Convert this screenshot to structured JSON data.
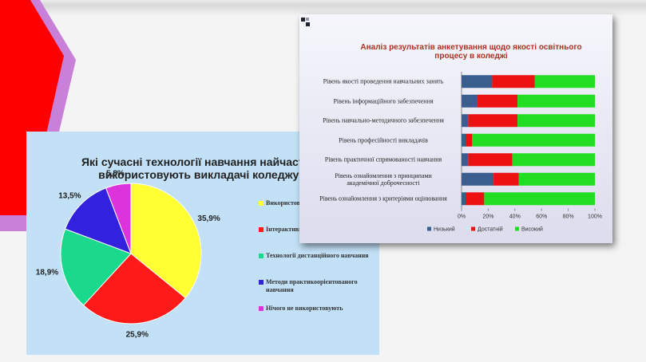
{
  "chart_data": [
    {
      "type": "pie",
      "title": "Які сучасні технології навчання найчастіше використовують викладачі коледжу?",
      "categories": [
        "Використовують електронні практичні",
        "Інтерактивні навчання",
        "Технології дистанційного навчання",
        "Методи практикоорієнтованого навчання",
        "Нічого не використовують"
      ],
      "values": [
        35.9,
        25.9,
        18.9,
        13.5,
        5.8
      ],
      "value_labels": [
        "35,9%",
        "25,9%",
        "18,9%",
        "13,5%",
        "5,8%"
      ],
      "colors": [
        "#ffff33",
        "#ff1a1a",
        "#1ad98c",
        "#3322dd",
        "#dd33dd"
      ]
    },
    {
      "type": "stacked-barh",
      "title": "Аналіз результатів анкетування щодо якості освітнього процесу в коледжі",
      "categories": [
        "Рівень якості проведення навчальних занять",
        "Рівень інформаційного забезпечення",
        "Рівень навчально-методичного забезпечення",
        "Рівень професійності викладачів",
        "Рівень практичної спрямованості навчання",
        "Рівень ознайомлення з принципами академічної доброчесності",
        "Рівень ознайомлення з критеріями оцінювання"
      ],
      "series": [
        {
          "name": "Низький",
          "color": "#3a5f8f",
          "values": [
            23,
            12,
            5,
            3,
            5,
            24,
            3
          ]
        },
        {
          "name": "Достатній",
          "color": "#ee1111",
          "values": [
            32,
            30,
            37,
            5,
            33,
            19,
            14
          ]
        },
        {
          "name": "Високий",
          "color": "#22dd22",
          "values": [
            45,
            58,
            58,
            92,
            62,
            57,
            83
          ]
        }
      ],
      "xlim": [
        0,
        100
      ],
      "xticks": [
        {
          "value": 0,
          "label": "0%"
        },
        {
          "value": 20,
          "label": "20%"
        },
        {
          "value": 40,
          "label": "40%"
        },
        {
          "value": 60,
          "label": "60%"
        },
        {
          "value": 80,
          "label": "80%"
        },
        {
          "value": 100,
          "label": "100%"
        }
      ]
    }
  ]
}
